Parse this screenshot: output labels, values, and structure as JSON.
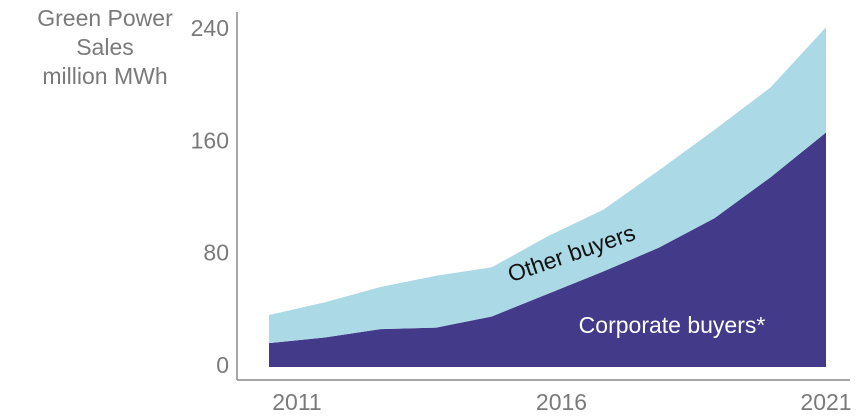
{
  "chart_data": {
    "type": "stacked-area",
    "ylabel": [
      "Green Power",
      "Sales",
      "million MWh"
    ],
    "x": [
      2011,
      2012,
      2013,
      2014,
      2015,
      2016,
      2017,
      2018,
      2019,
      2020,
      2021
    ],
    "series": [
      {
        "name": "Corporate buyers*",
        "color": "#433a8a",
        "values": [
          17,
          21,
          27,
          28,
          36,
          52,
          68,
          85,
          106,
          135,
          167
        ]
      },
      {
        "name": "Other buyers",
        "color": "#abd9e6",
        "values": [
          20,
          25,
          30,
          37,
          35,
          41,
          44,
          55,
          63,
          64,
          75
        ]
      }
    ],
    "xlim": [
      2011,
      2021
    ],
    "xticks": [
      2011,
      2016,
      2021
    ],
    "ylim": [
      0,
      240
    ],
    "yticks": [
      0,
      80,
      160,
      240
    ]
  }
}
